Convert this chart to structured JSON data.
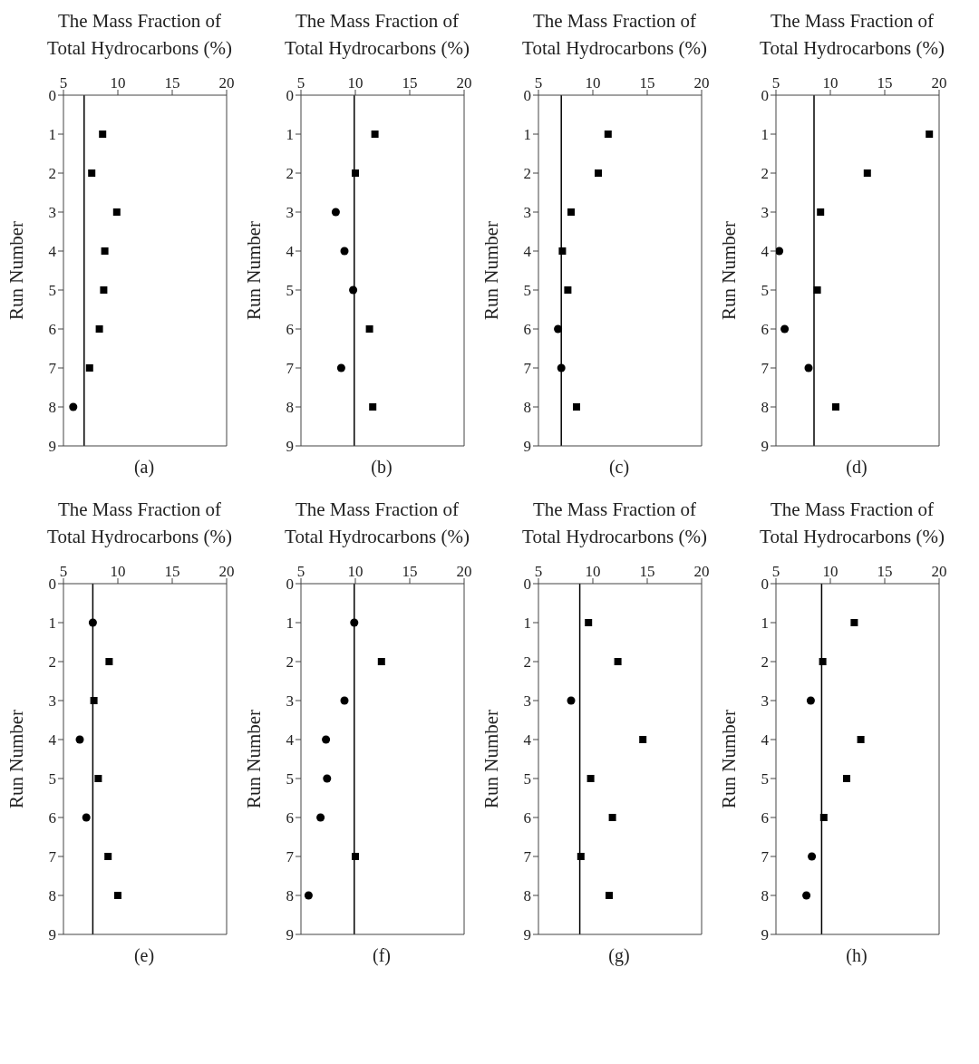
{
  "chart_data": [
    {
      "type": "scatter",
      "xlabel": "The Mass Fraction of Total Hydrocarbons (%)",
      "ylabel": "Run Number",
      "xlim": [
        5,
        20
      ],
      "xticks": [
        5,
        10,
        15,
        20
      ],
      "ylim": [
        9,
        0
      ],
      "yticks": [
        0,
        1,
        2,
        3,
        4,
        5,
        6,
        7,
        8,
        9
      ],
      "annotations": [
        "(a)"
      ],
      "series": [
        {
          "marker": "square",
          "color": "#000000",
          "x": [
            8.6,
            7.6,
            9.9,
            8.8,
            8.7,
            8.3,
            7.4
          ],
          "values": [
            1,
            2,
            3,
            4,
            5,
            6,
            7
          ]
        },
        {
          "marker": "circle",
          "color": "#000000",
          "x": [
            5.9
          ],
          "values": [
            8
          ]
        }
      ],
      "ref_lines": [
        {
          "axis": "x",
          "value": 6.9,
          "color": "#000000"
        }
      ]
    },
    {
      "type": "scatter",
      "xlabel": "The Mass Fraction of Total Hydrocarbons (%)",
      "ylabel": "Run Number",
      "xlim": [
        5,
        20
      ],
      "xticks": [
        5,
        10,
        15,
        20
      ],
      "ylim": [
        9,
        0
      ],
      "yticks": [
        0,
        1,
        2,
        3,
        4,
        5,
        6,
        7,
        8,
        9
      ],
      "annotations": [
        "(b)"
      ],
      "series": [
        {
          "marker": "square",
          "color": "#000000",
          "x": [
            11.8,
            10.0,
            11.3,
            11.6
          ],
          "values": [
            1,
            2,
            6,
            8
          ]
        },
        {
          "marker": "circle",
          "color": "#000000",
          "x": [
            8.2,
            9.0,
            9.8,
            8.7
          ],
          "values": [
            3,
            4,
            5,
            7
          ]
        }
      ],
      "ref_lines": [
        {
          "axis": "x",
          "value": 9.9,
          "color": "#000000"
        }
      ]
    },
    {
      "type": "scatter",
      "xlabel": "The Mass Fraction of Total Hydrocarbons (%)",
      "ylabel": "Run Number",
      "xlim": [
        5,
        20
      ],
      "xticks": [
        5,
        10,
        15,
        20
      ],
      "ylim": [
        9,
        0
      ],
      "yticks": [
        0,
        1,
        2,
        3,
        4,
        5,
        6,
        7,
        8,
        9
      ],
      "annotations": [
        "(c)"
      ],
      "series": [
        {
          "marker": "square",
          "color": "#000000",
          "x": [
            11.4,
            10.5,
            8.0,
            7.2,
            7.7,
            8.5
          ],
          "values": [
            1,
            2,
            3,
            4,
            5,
            8
          ]
        },
        {
          "marker": "circle",
          "color": "#000000",
          "x": [
            6.8,
            7.1
          ],
          "values": [
            6,
            7
          ]
        }
      ],
      "ref_lines": [
        {
          "axis": "x",
          "value": 7.1,
          "color": "#000000"
        }
      ]
    },
    {
      "type": "scatter",
      "xlabel": "The Mass Fraction of Total Hydrocarbons (%)",
      "ylabel": "Run Number",
      "xlim": [
        5,
        20
      ],
      "xticks": [
        5,
        10,
        15,
        20
      ],
      "ylim": [
        9,
        0
      ],
      "yticks": [
        0,
        1,
        2,
        3,
        4,
        5,
        6,
        7,
        8,
        9
      ],
      "annotations": [
        "(d)"
      ],
      "series": [
        {
          "marker": "square",
          "color": "#000000",
          "x": [
            19.1,
            13.4,
            9.1,
            8.8,
            10.5
          ],
          "values": [
            1,
            2,
            3,
            5,
            8
          ]
        },
        {
          "marker": "circle",
          "color": "#000000",
          "x": [
            5.3,
            5.8,
            8.0
          ],
          "values": [
            4,
            6,
            7
          ]
        }
      ],
      "ref_lines": [
        {
          "axis": "x",
          "value": 8.5,
          "color": "#000000"
        }
      ]
    },
    {
      "type": "scatter",
      "xlabel": "The Mass Fraction of Total Hydrocarbons (%)",
      "ylabel": "Run Number",
      "xlim": [
        5,
        20
      ],
      "xticks": [
        5,
        10,
        15,
        20
      ],
      "ylim": [
        9,
        0
      ],
      "yticks": [
        0,
        1,
        2,
        3,
        4,
        5,
        6,
        7,
        8,
        9
      ],
      "annotations": [
        "(e)"
      ],
      "series": [
        {
          "marker": "square",
          "color": "#000000",
          "x": [
            9.2,
            7.8,
            8.2,
            9.1,
            10.0
          ],
          "values": [
            2,
            3,
            5,
            7,
            8
          ]
        },
        {
          "marker": "circle",
          "color": "#000000",
          "x": [
            7.7,
            6.5,
            7.1
          ],
          "values": [
            1,
            4,
            6
          ]
        }
      ],
      "ref_lines": [
        {
          "axis": "x",
          "value": 7.7,
          "color": "#000000"
        }
      ]
    },
    {
      "type": "scatter",
      "xlabel": "The Mass Fraction of Total Hydrocarbons (%)",
      "ylabel": "Run Number",
      "xlim": [
        5,
        20
      ],
      "xticks": [
        5,
        10,
        15,
        20
      ],
      "ylim": [
        9,
        0
      ],
      "yticks": [
        0,
        1,
        2,
        3,
        4,
        5,
        6,
        7,
        8,
        9
      ],
      "annotations": [
        "(f)"
      ],
      "series": [
        {
          "marker": "square",
          "color": "#000000",
          "x": [
            12.4,
            10.0
          ],
          "values": [
            2,
            7
          ]
        },
        {
          "marker": "circle",
          "color": "#000000",
          "x": [
            9.9,
            9.0,
            7.3,
            7.4,
            6.8,
            5.7
          ],
          "values": [
            1,
            3,
            4,
            5,
            6,
            8
          ]
        }
      ],
      "ref_lines": [
        {
          "axis": "x",
          "value": 9.9,
          "color": "#000000"
        }
      ]
    },
    {
      "type": "scatter",
      "xlabel": "The Mass Fraction of Total Hydrocarbons (%)",
      "ylabel": "Run Number",
      "xlim": [
        5,
        20
      ],
      "xticks": [
        5,
        10,
        15,
        20
      ],
      "ylim": [
        9,
        0
      ],
      "yticks": [
        0,
        1,
        2,
        3,
        4,
        5,
        6,
        7,
        8,
        9
      ],
      "annotations": [
        "(g)"
      ],
      "series": [
        {
          "marker": "square",
          "color": "#000000",
          "x": [
            9.6,
            12.3,
            14.6,
            9.8,
            11.8,
            8.9,
            11.5
          ],
          "values": [
            1,
            2,
            4,
            5,
            6,
            7,
            8
          ]
        },
        {
          "marker": "circle",
          "color": "#000000",
          "x": [
            8.0
          ],
          "values": [
            3
          ]
        }
      ],
      "ref_lines": [
        {
          "axis": "x",
          "value": 8.8,
          "color": "#000000"
        }
      ]
    },
    {
      "type": "scatter",
      "xlabel": "The Mass Fraction of Total Hydrocarbons (%)",
      "ylabel": "Run Number",
      "xlim": [
        5,
        20
      ],
      "xticks": [
        5,
        10,
        15,
        20
      ],
      "ylim": [
        9,
        0
      ],
      "yticks": [
        0,
        1,
        2,
        3,
        4,
        5,
        6,
        7,
        8,
        9
      ],
      "annotations": [
        "(h)"
      ],
      "series": [
        {
          "marker": "square",
          "color": "#000000",
          "x": [
            12.2,
            9.3,
            12.8,
            11.5,
            9.4
          ],
          "values": [
            1,
            2,
            4,
            5,
            6
          ]
        },
        {
          "marker": "circle",
          "color": "#000000",
          "x": [
            8.2,
            8.3,
            7.8
          ],
          "values": [
            3,
            7,
            8
          ]
        }
      ],
      "ref_lines": [
        {
          "axis": "x",
          "value": 9.2,
          "color": "#000000"
        }
      ]
    }
  ]
}
